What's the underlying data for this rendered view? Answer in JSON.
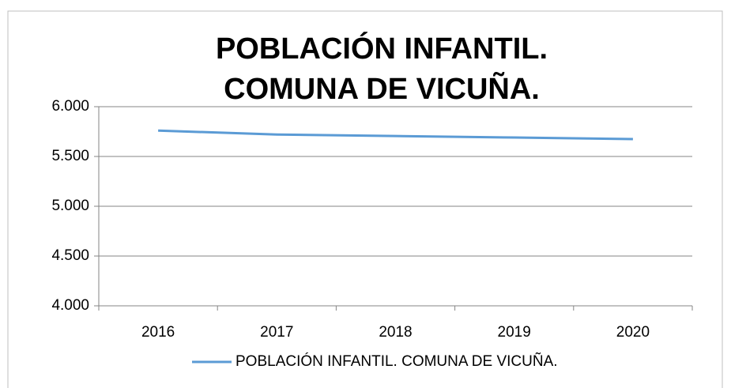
{
  "chart_data": {
    "type": "line",
    "title": [
      "POBLACIÓN INFANTIL.",
      "COMUNA DE VICUÑA."
    ],
    "categories": [
      "2016",
      "2017",
      "2018",
      "2019",
      "2020"
    ],
    "series": [
      {
        "name": "POBLACIÓN INFANTIL. COMUNA DE VICUÑA.",
        "color": "#5b9bd5",
        "values": [
          5760,
          5720,
          5705,
          5690,
          5675
        ]
      }
    ],
    "ylim": [
      4000,
      6000
    ],
    "yticks": [
      {
        "value": 4000,
        "label": "4.000"
      },
      {
        "value": 4500,
        "label": "4.500"
      },
      {
        "value": 5000,
        "label": "5.000"
      },
      {
        "value": 5500,
        "label": "5.500"
      },
      {
        "value": 6000,
        "label": "6.000"
      }
    ],
    "grid": true,
    "legend": "bottom"
  }
}
